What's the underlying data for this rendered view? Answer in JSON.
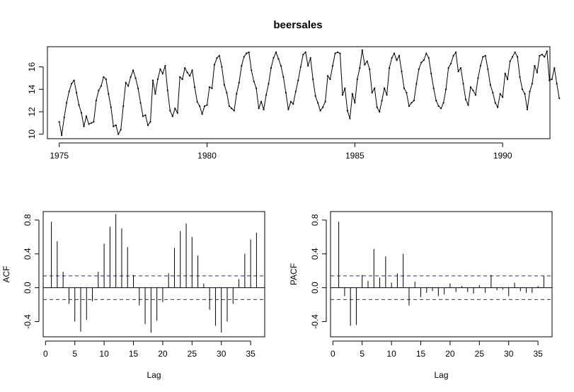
{
  "chart_data": [
    {
      "type": "line",
      "title": "beersales",
      "xlabel": "",
      "ylabel": "",
      "x_ticks": [
        1975,
        1980,
        1985,
        1990
      ],
      "y_ticks": [
        10,
        12,
        14,
        16
      ],
      "xlim": [
        1974.6,
        1991.6
      ],
      "ylim": [
        9.6,
        17.8
      ],
      "grid": false,
      "x_start": 1975.0,
      "x_step": 0.0833333,
      "series": [
        {
          "values": [
            11.1,
            9.9,
            11.5,
            12.8,
            13.8,
            14.5,
            14.8,
            13.7,
            12.6,
            11.9,
            10.7,
            11.6,
            10.9,
            11.0,
            11.1,
            13.0,
            13.9,
            14.3,
            15.1,
            14.9,
            13.6,
            12.4,
            10.7,
            10.8,
            10.0,
            10.4,
            12.5,
            14.6,
            14.3,
            15.1,
            15.7,
            15.0,
            14.1,
            12.8,
            11.6,
            11.7,
            10.8,
            11.1,
            14.8,
            13.6,
            14.9,
            15.8,
            15.4,
            16.1,
            13.9,
            12.1,
            11.6,
            12.3,
            11.9,
            15.1,
            14.9,
            15.9,
            15.5,
            15.2,
            15.7,
            14.2,
            12.9,
            12.5,
            11.8,
            12.5,
            12.6,
            14.2,
            14.1,
            16.2,
            16.8,
            17.0,
            16.0,
            14.4,
            13.7,
            12.5,
            12.3,
            12.1,
            13.6,
            14.6,
            16.1,
            16.9,
            17.2,
            17.3,
            15.7,
            14.7,
            14.1,
            12.3,
            12.9,
            12.2,
            13.5,
            14.5,
            15.9,
            16.8,
            17.3,
            16.7,
            16.1,
            15.1,
            13.7,
            12.2,
            12.9,
            12.7,
            13.8,
            14.8,
            16.0,
            17.1,
            17.3,
            16.1,
            16.8,
            14.9,
            13.4,
            12.8,
            12.1,
            12.4,
            12.9,
            15.2,
            14.9,
            16.1,
            17.2,
            17.3,
            17.2,
            13.5,
            14.1,
            12.1,
            11.4,
            13.6,
            12.8,
            14.9,
            15.9,
            17.5,
            16.2,
            16.5,
            15.8,
            13.7,
            14.1,
            12.4,
            12.0,
            13.0,
            14.1,
            13.5,
            15.9,
            16.8,
            17.2,
            16.6,
            17.0,
            15.6,
            14.1,
            13.7,
            12.5,
            12.8,
            13.0,
            14.5,
            15.8,
            16.4,
            16.6,
            17.2,
            16.8,
            15.4,
            14.1,
            13.0,
            12.5,
            12.3,
            12.8,
            14.0,
            15.9,
            16.3,
            17.0,
            17.3,
            15.6,
            15.9,
            14.5,
            13.1,
            12.6,
            14.2,
            13.9,
            13.5,
            15.0,
            16.1,
            16.9,
            17.0,
            15.8,
            14.4,
            13.7,
            12.8,
            12.4,
            13.6,
            13.3,
            15.4,
            14.9,
            16.5,
            16.9,
            17.3,
            16.9,
            15.1,
            14.0,
            13.6,
            12.2,
            13.8,
            14.5,
            16.1,
            15.5,
            17.0,
            17.1,
            16.9,
            17.4,
            14.8,
            14.9,
            15.9,
            14.5,
            13.2
          ]
        }
      ]
    },
    {
      "type": "bar",
      "title": "",
      "xlabel": "Lag",
      "ylabel": "ACF",
      "x_ticks": [
        0,
        5,
        10,
        15,
        20,
        25,
        30,
        35
      ],
      "y_ticks": [
        "-0.4",
        "0.0",
        "0.4",
        "0.8"
      ],
      "y_tick_values": [
        -0.4,
        0.0,
        0.4,
        0.8
      ],
      "xlim": [
        -0.4,
        37.4
      ],
      "ylim": [
        -0.58,
        0.9
      ],
      "confidence_bound": 0.14,
      "lags": [
        1,
        2,
        3,
        4,
        5,
        6,
        7,
        8,
        9,
        10,
        11,
        12,
        13,
        14,
        15,
        16,
        17,
        18,
        19,
        20,
        21,
        22,
        23,
        24,
        25,
        26,
        27,
        28,
        29,
        30,
        31,
        32,
        33,
        34,
        35,
        36
      ],
      "values": [
        0.78,
        0.55,
        0.19,
        -0.19,
        -0.4,
        -0.52,
        -0.38,
        -0.16,
        0.19,
        0.52,
        0.72,
        0.87,
        0.7,
        0.48,
        0.15,
        -0.21,
        -0.43,
        -0.53,
        -0.39,
        -0.17,
        0.17,
        0.47,
        0.67,
        0.76,
        0.6,
        0.38,
        0.05,
        -0.26,
        -0.45,
        -0.53,
        -0.4,
        -0.19,
        0.1,
        0.4,
        0.57,
        0.65
      ]
    },
    {
      "type": "bar",
      "title": "",
      "xlabel": "Lag",
      "ylabel": "PACF",
      "x_ticks": [
        0,
        5,
        10,
        15,
        20,
        25,
        30,
        35
      ],
      "y_ticks": [
        "-0.4",
        "0.0",
        "0.4",
        "0.8"
      ],
      "y_tick_values": [
        -0.4,
        0.0,
        0.4,
        0.8
      ],
      "xlim": [
        -0.4,
        37.4
      ],
      "ylim": [
        -0.58,
        0.9
      ],
      "confidence_bound": 0.14,
      "lags": [
        1,
        2,
        3,
        4,
        5,
        6,
        7,
        8,
        9,
        10,
        11,
        12,
        13,
        14,
        15,
        16,
        17,
        18,
        19,
        20,
        21,
        22,
        23,
        24,
        25,
        26,
        27,
        28,
        29,
        30,
        31,
        32,
        33,
        34,
        35,
        36
      ],
      "values": [
        0.78,
        -0.1,
        -0.45,
        -0.44,
        0.15,
        0.08,
        0.46,
        0.12,
        0.37,
        0.06,
        0.17,
        0.4,
        -0.21,
        0.07,
        -0.11,
        -0.06,
        -0.04,
        -0.1,
        -0.08,
        0.05,
        -0.05,
        0.02,
        -0.05,
        -0.07,
        0.03,
        -0.06,
        0.15,
        -0.03,
        -0.02,
        -0.1,
        0.06,
        -0.04,
        -0.06,
        -0.06,
        0.02,
        0.14
      ]
    }
  ]
}
